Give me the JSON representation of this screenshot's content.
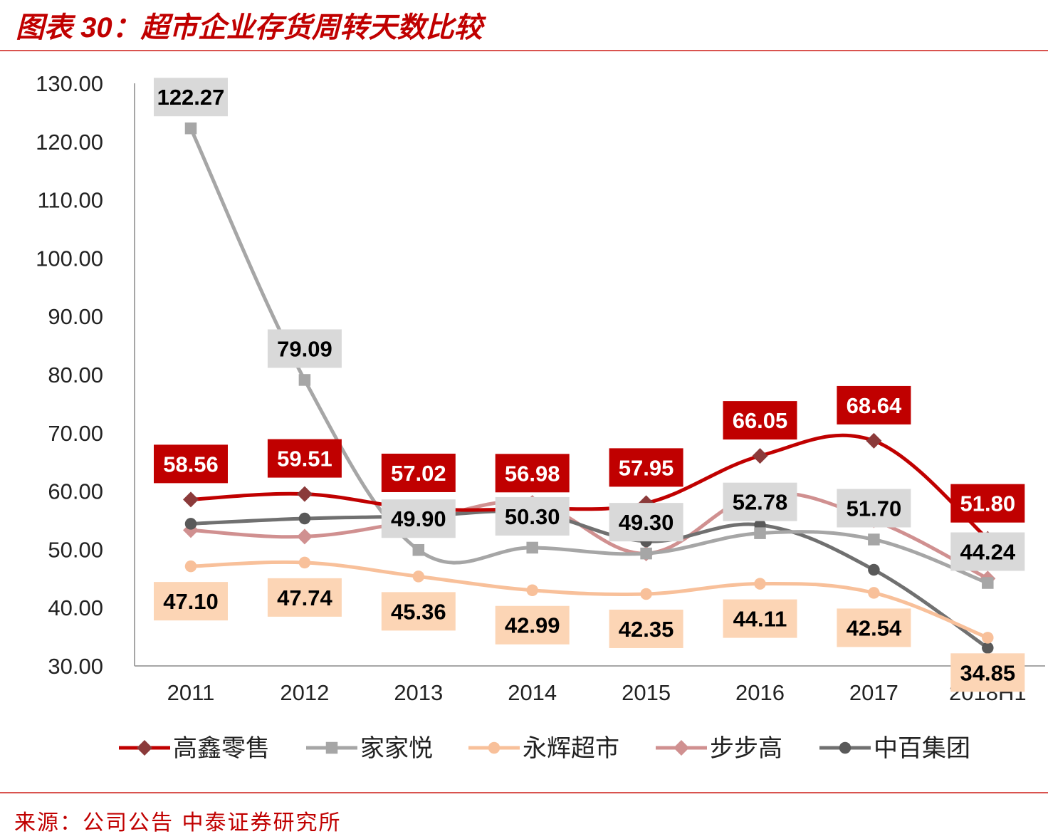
{
  "title": "图表 30：超市企业存货周转天数比较",
  "source": "来源：公司公告 中泰证券研究所",
  "chart_data": {
    "type": "line",
    "title": "",
    "xlabel": "",
    "ylabel": "",
    "categories": [
      "2011",
      "2012",
      "2013",
      "2014",
      "2015",
      "2016",
      "2017",
      "2018H1"
    ],
    "ylim": [
      30,
      130
    ],
    "yticks": [
      "30.00",
      "40.00",
      "50.00",
      "60.00",
      "70.00",
      "80.00",
      "90.00",
      "100.00",
      "110.00",
      "120.00",
      "130.00"
    ],
    "grid": false,
    "legend": "bottom",
    "series": [
      {
        "name": "高鑫零售",
        "color": "#c00000",
        "marker": "diamond",
        "marker_color": "#8b3a3a",
        "labels": true,
        "label_bg": "#c00000",
        "label_fg": "#ffffff",
        "values": [
          58.56,
          59.51,
          57.02,
          56.98,
          57.95,
          66.05,
          68.64,
          51.8
        ]
      },
      {
        "name": "家家悦",
        "color": "#a6a6a6",
        "marker": "square",
        "marker_color": "#a6a6a6",
        "labels": true,
        "label_bg": "#d9d9d9",
        "label_fg": "#000000",
        "values": [
          122.27,
          79.09,
          49.9,
          50.3,
          49.3,
          52.78,
          51.7,
          44.24
        ]
      },
      {
        "name": "永辉超市",
        "color": "#f8c09a",
        "marker": "circle",
        "marker_color": "#f8c09a",
        "labels": true,
        "label_bg": "#fcd5b5",
        "label_fg": "#000000",
        "values": [
          47.1,
          47.74,
          45.36,
          42.99,
          42.35,
          44.11,
          42.54,
          34.85
        ]
      },
      {
        "name": "步步高",
        "color": "#d09090",
        "marker": "diamond",
        "marker_color": "#d09090",
        "labels": false,
        "values": [
          53.3,
          52.2,
          55.0,
          58.0,
          49.3,
          59.5,
          55.0,
          45.0
        ]
      },
      {
        "name": "中百集团",
        "color": "#707070",
        "marker": "circle",
        "marker_color": "#595959",
        "labels": false,
        "values": [
          54.4,
          55.3,
          55.7,
          56.3,
          51.4,
          54.2,
          46.5,
          33.1
        ]
      }
    ]
  }
}
